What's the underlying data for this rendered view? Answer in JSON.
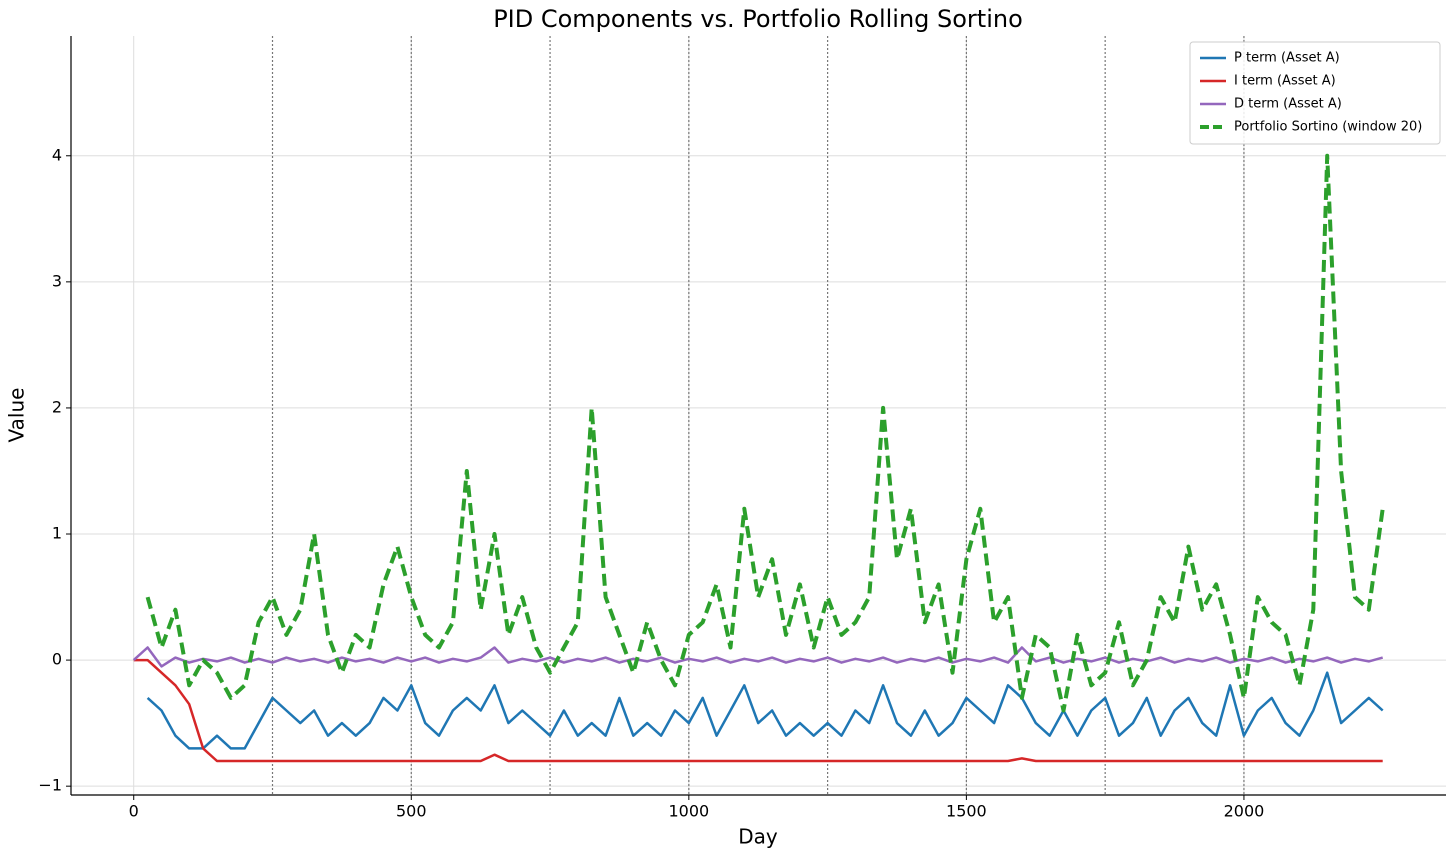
{
  "chart_data": {
    "type": "line",
    "title": "PID Components vs. Portfolio Rolling Sortino",
    "x_label": "Day",
    "y_label": "Value",
    "x": [
      0,
      25,
      50,
      75,
      100,
      125,
      150,
      175,
      200,
      225,
      250,
      275,
      300,
      325,
      350,
      375,
      400,
      425,
      450,
      475,
      500,
      525,
      550,
      575,
      600,
      625,
      650,
      675,
      700,
      725,
      750,
      775,
      800,
      825,
      850,
      875,
      900,
      925,
      950,
      975,
      1000,
      1025,
      1050,
      1075,
      1100,
      1125,
      1150,
      1175,
      1200,
      1225,
      1250,
      1275,
      1300,
      1325,
      1350,
      1375,
      1400,
      1425,
      1450,
      1475,
      1500,
      1525,
      1550,
      1575,
      1600,
      1625,
      1650,
      1675,
      1700,
      1725,
      1750,
      1775,
      1800,
      1825,
      1850,
      1875,
      1900,
      1925,
      1950,
      1975,
      2000,
      2025,
      2050,
      2075,
      2100,
      2125,
      2150,
      2175,
      2200,
      2225,
      2250
    ],
    "series": [
      {
        "name": "P term (Asset A)",
        "color": "#1f77b4",
        "linestyle": "solid",
        "values": [
          null,
          -0.3,
          -0.4,
          -0.6,
          -0.7,
          -0.7,
          -0.6,
          -0.7,
          -0.7,
          -0.5,
          -0.3,
          -0.4,
          -0.5,
          -0.4,
          -0.6,
          -0.5,
          -0.6,
          -0.5,
          -0.3,
          -0.4,
          -0.2,
          -0.5,
          -0.6,
          -0.4,
          -0.3,
          -0.4,
          -0.2,
          -0.5,
          -0.4,
          -0.5,
          -0.6,
          -0.4,
          -0.6,
          -0.5,
          -0.6,
          -0.3,
          -0.6,
          -0.5,
          -0.6,
          -0.4,
          -0.5,
          -0.3,
          -0.6,
          -0.4,
          -0.2,
          -0.5,
          -0.4,
          -0.6,
          -0.5,
          -0.6,
          -0.5,
          -0.6,
          -0.4,
          -0.5,
          -0.2,
          -0.5,
          -0.6,
          -0.4,
          -0.6,
          -0.5,
          -0.3,
          -0.4,
          -0.5,
          -0.2,
          -0.3,
          -0.5,
          -0.6,
          -0.4,
          -0.6,
          -0.4,
          -0.3,
          -0.6,
          -0.5,
          -0.3,
          -0.6,
          -0.4,
          -0.3,
          -0.5,
          -0.6,
          -0.2,
          -0.6,
          -0.4,
          -0.3,
          -0.5,
          -0.6,
          -0.4,
          -0.1,
          -0.5,
          -0.4,
          -0.3,
          -0.4
        ]
      },
      {
        "name": "I term (Asset A)",
        "color": "#d62728",
        "linestyle": "solid",
        "values": [
          0,
          0,
          -0.1,
          -0.2,
          -0.35,
          -0.7,
          -0.8,
          -0.8,
          -0.8,
          -0.8,
          -0.8,
          -0.8,
          -0.8,
          -0.8,
          -0.8,
          -0.8,
          -0.8,
          -0.8,
          -0.8,
          -0.8,
          -0.8,
          -0.8,
          -0.8,
          -0.8,
          -0.8,
          -0.8,
          -0.75,
          -0.8,
          -0.8,
          -0.8,
          -0.8,
          -0.8,
          -0.8,
          -0.8,
          -0.8,
          -0.8,
          -0.8,
          -0.8,
          -0.8,
          -0.8,
          -0.8,
          -0.8,
          -0.8,
          -0.8,
          -0.8,
          -0.8,
          -0.8,
          -0.8,
          -0.8,
          -0.8,
          -0.8,
          -0.8,
          -0.8,
          -0.8,
          -0.8,
          -0.8,
          -0.8,
          -0.8,
          -0.8,
          -0.8,
          -0.8,
          -0.8,
          -0.8,
          -0.8,
          -0.78,
          -0.8,
          -0.8,
          -0.8,
          -0.8,
          -0.8,
          -0.8,
          -0.8,
          -0.8,
          -0.8,
          -0.8,
          -0.8,
          -0.8,
          -0.8,
          -0.8,
          -0.8,
          -0.8,
          -0.8,
          -0.8,
          -0.8,
          -0.8,
          -0.8,
          -0.8,
          -0.8,
          -0.8,
          -0.8,
          -0.8
        ]
      },
      {
        "name": "D term (Asset A)",
        "color": "#9467bd",
        "linestyle": "solid",
        "values": [
          0,
          0.1,
          -0.05,
          0.02,
          -0.02,
          0.01,
          -0.01,
          0.02,
          -0.02,
          0.01,
          -0.02,
          0.02,
          -0.01,
          0.01,
          -0.02,
          0.02,
          -0.01,
          0.01,
          -0.02,
          0.02,
          -0.01,
          0.02,
          -0.02,
          0.01,
          -0.01,
          0.02,
          0.1,
          -0.02,
          0.01,
          -0.01,
          0.02,
          -0.02,
          0.01,
          -0.01,
          0.02,
          -0.02,
          0.01,
          -0.01,
          0.02,
          -0.02,
          0.01,
          -0.01,
          0.02,
          -0.02,
          0.01,
          -0.01,
          0.02,
          -0.02,
          0.01,
          -0.01,
          0.02,
          -0.02,
          0.01,
          -0.01,
          0.02,
          -0.02,
          0.01,
          -0.01,
          0.02,
          -0.02,
          0.01,
          -0.01,
          0.02,
          -0.02,
          0.1,
          -0.01,
          0.02,
          -0.02,
          0.01,
          -0.01,
          0.02,
          -0.02,
          0.01,
          -0.01,
          0.02,
          -0.02,
          0.01,
          -0.01,
          0.02,
          -0.02,
          0.01,
          -0.01,
          0.02,
          -0.02,
          0.01,
          -0.01,
          0.02,
          -0.02,
          0.01,
          -0.01,
          0.02
        ]
      },
      {
        "name": "Portfolio Sortino (window 20)",
        "color": "#2ca02c",
        "linestyle": "dashed",
        "values": [
          null,
          0.5,
          0.1,
          0.4,
          -0.2,
          0,
          -0.1,
          -0.3,
          -0.2,
          0.3,
          0.5,
          0.2,
          0.4,
          1.0,
          0.2,
          -0.1,
          0.2,
          0.1,
          0.6,
          0.9,
          0.5,
          0.2,
          0.1,
          0.3,
          1.5,
          0.4,
          1.0,
          0.2,
          0.5,
          0.1,
          -0.1,
          0.1,
          0.3,
          2.0,
          0.5,
          0.2,
          -0.1,
          0.3,
          0,
          -0.2,
          0.2,
          0.3,
          0.6,
          0.1,
          1.2,
          0.5,
          0.8,
          0.2,
          0.6,
          0.1,
          0.5,
          0.2,
          0.3,
          0.5,
          2.0,
          0.8,
          1.2,
          0.3,
          0.6,
          -0.1,
          0.8,
          1.2,
          0.3,
          0.5,
          -0.3,
          0.2,
          0.1,
          -0.4,
          0.2,
          -0.2,
          -0.1,
          0.3,
          -0.2,
          0,
          0.5,
          0.3,
          0.9,
          0.4,
          0.6,
          0.2,
          -0.3,
          0.5,
          0.3,
          0.2,
          -0.2,
          0.4,
          4.0,
          1.5,
          0.5,
          0.4,
          1.2
        ]
      }
    ],
    "vlines": [
      250,
      500,
      750,
      1000,
      1250,
      1500,
      1750,
      2000
    ],
    "xlim": [
      -113,
      2364
    ],
    "ylim": [
      -1.07,
      4.95
    ],
    "xticks": [
      0,
      500,
      1000,
      1500,
      2000
    ],
    "yticks": [
      {
        "value": -1,
        "label": "−1"
      },
      0,
      1,
      2,
      3,
      4
    ],
    "grid": true,
    "legend": "upper right"
  }
}
